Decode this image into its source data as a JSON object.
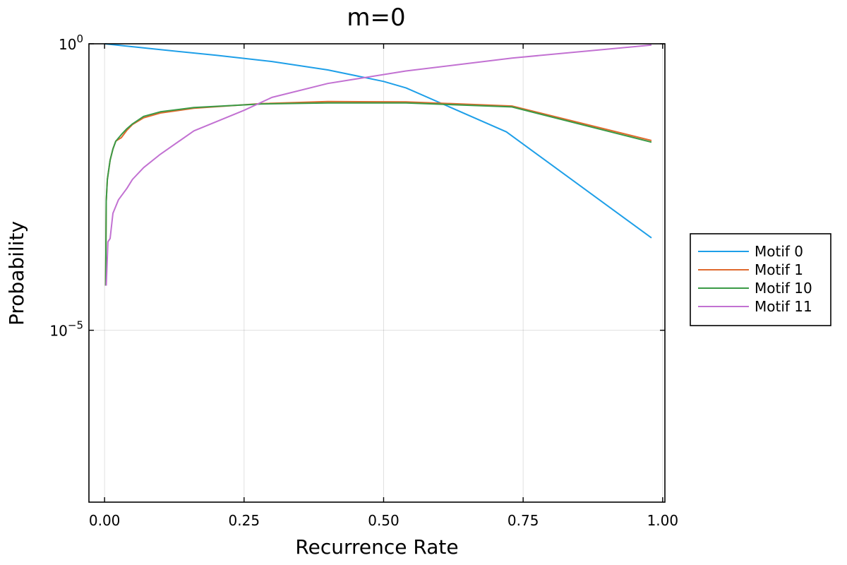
{
  "chart_data": {
    "type": "line",
    "title": "m=0",
    "xlabel": "Recurrence Rate",
    "ylabel": "Probability",
    "xlim": [
      -0.028,
      1.004
    ],
    "ylim_log10": [
      -8,
      0
    ],
    "y_scale": "log10",
    "grid": true,
    "legend": "outside-right",
    "x_ticks": [
      {
        "value": 0.0,
        "label": "0.00"
      },
      {
        "value": 0.25,
        "label": "0.25"
      },
      {
        "value": 0.5,
        "label": "0.50"
      },
      {
        "value": 0.75,
        "label": "0.75"
      },
      {
        "value": 1.0,
        "label": "1.00"
      }
    ],
    "y_ticks": [
      {
        "value": 1,
        "base": "10",
        "exp": "0"
      },
      {
        "value": 1e-05,
        "base": "10",
        "exp": "−5"
      }
    ],
    "series": [
      {
        "name": "Motif 0",
        "color": "#1e9fe8",
        "points": [
          [
            0.0,
            1.0
          ],
          [
            0.1,
            0.79
          ],
          [
            0.2,
            0.63
          ],
          [
            0.3,
            0.49
          ],
          [
            0.4,
            0.35
          ],
          [
            0.5,
            0.22
          ],
          [
            0.54,
            0.17
          ],
          [
            0.72,
            0.029
          ],
          [
            0.98,
            0.00041
          ]
        ]
      },
      {
        "name": "Motif 1",
        "color": "#e06a2e",
        "points": [
          [
            0.002,
            6e-05
          ],
          [
            0.003,
            0.0018
          ],
          [
            0.005,
            0.0043
          ],
          [
            0.01,
            0.0093
          ],
          [
            0.015,
            0.0146
          ],
          [
            0.02,
            0.02
          ],
          [
            0.03,
            0.023
          ],
          [
            0.04,
            0.031
          ],
          [
            0.05,
            0.039
          ],
          [
            0.07,
            0.051
          ],
          [
            0.1,
            0.062
          ],
          [
            0.16,
            0.075
          ],
          [
            0.28,
            0.09
          ],
          [
            0.4,
            0.098
          ],
          [
            0.54,
            0.097
          ],
          [
            0.73,
            0.082
          ],
          [
            0.98,
            0.0205
          ]
        ]
      },
      {
        "name": "Motif 10",
        "color": "#3a9a46",
        "points": [
          [
            0.002,
            6e-05
          ],
          [
            0.003,
            0.0018
          ],
          [
            0.005,
            0.0043
          ],
          [
            0.01,
            0.0093
          ],
          [
            0.015,
            0.0146
          ],
          [
            0.02,
            0.0199
          ],
          [
            0.03,
            0.026
          ],
          [
            0.04,
            0.033
          ],
          [
            0.05,
            0.04
          ],
          [
            0.07,
            0.054
          ],
          [
            0.1,
            0.065
          ],
          [
            0.16,
            0.077
          ],
          [
            0.28,
            0.089
          ],
          [
            0.4,
            0.093
          ],
          [
            0.54,
            0.093
          ],
          [
            0.73,
            0.079
          ],
          [
            0.98,
            0.0192
          ]
        ]
      },
      {
        "name": "Motif 11",
        "color": "#c271d2",
        "points": [
          [
            0.003,
            6e-05
          ],
          [
            0.006,
            0.00035
          ],
          [
            0.01,
            0.0004
          ],
          [
            0.015,
            0.0011
          ],
          [
            0.025,
            0.0019
          ],
          [
            0.04,
            0.003
          ],
          [
            0.05,
            0.0043
          ],
          [
            0.07,
            0.0069
          ],
          [
            0.1,
            0.0118
          ],
          [
            0.16,
            0.0302
          ],
          [
            0.25,
            0.069
          ],
          [
            0.3,
            0.116
          ],
          [
            0.4,
            0.203
          ],
          [
            0.54,
            0.335
          ],
          [
            0.73,
            0.564
          ],
          [
            0.98,
            0.95
          ]
        ]
      }
    ]
  }
}
